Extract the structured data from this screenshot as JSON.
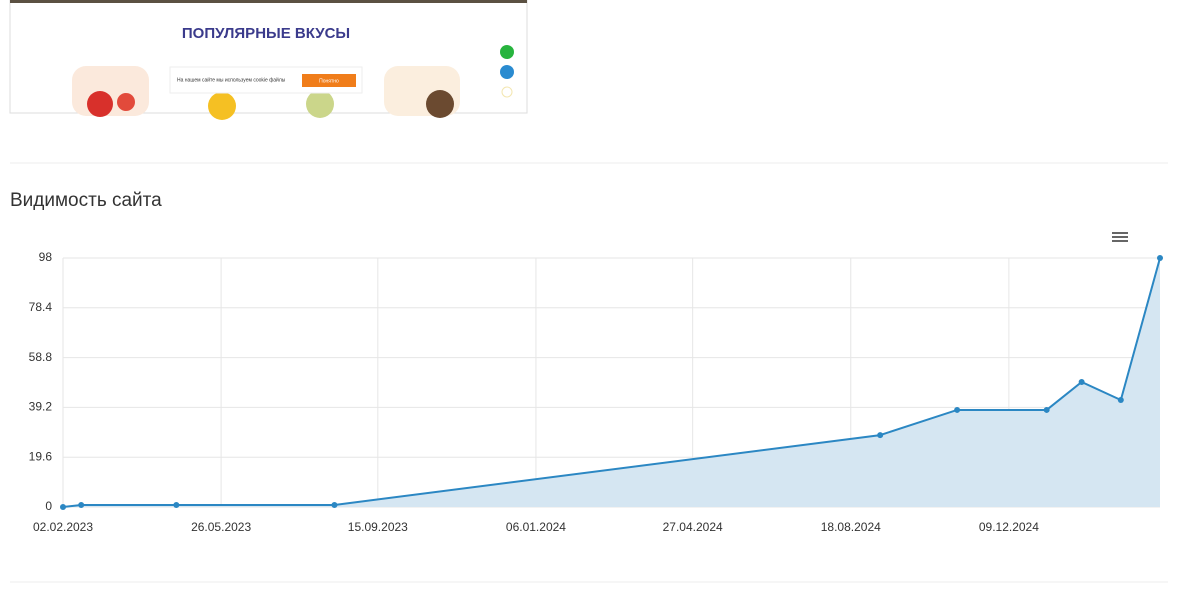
{
  "thumbnail": {
    "heading": "ПОПУЛЯРНЫЕ ВКУСЫ",
    "cookie_text": "На нашем сайте мы используем cookie файлы",
    "cookie_button": "Понятно"
  },
  "chart_data": {
    "type": "area",
    "title": "Видимость сайта",
    "x": [
      "2023-02-02",
      "2023-02-15",
      "2023-04-24",
      "2023-08-15",
      "2024-09-08",
      "2024-11-02",
      "2025-01-05",
      "2025-01-30",
      "2025-02-27",
      "2025-03-27"
    ],
    "series": [
      {
        "color": "#2b87c3",
        "fill": "#d5e6f2",
        "values": [
          0,
          0.8,
          0.8,
          0.8,
          28.3,
          38.2,
          38.2,
          49.2,
          42.1,
          98
        ]
      }
    ],
    "xlim": [
      "2023-02-02",
      "2025-03-27"
    ],
    "xticks": [
      {
        "value": "2023-02-02",
        "label": "02.02.2023"
      },
      {
        "value": "2023-05-26",
        "label": "26.05.2023"
      },
      {
        "value": "2023-09-15",
        "label": "15.09.2023"
      },
      {
        "value": "2024-01-06",
        "label": "06.01.2024"
      },
      {
        "value": "2024-04-27",
        "label": "27.04.2024"
      },
      {
        "value": "2024-08-18",
        "label": "18.08.2024"
      },
      {
        "value": "2024-12-09",
        "label": "09.12.2024"
      }
    ],
    "ylim": [
      0,
      98
    ],
    "yticks": [
      0,
      19.6,
      39.2,
      58.8,
      78.4,
      98
    ],
    "grid": true
  }
}
